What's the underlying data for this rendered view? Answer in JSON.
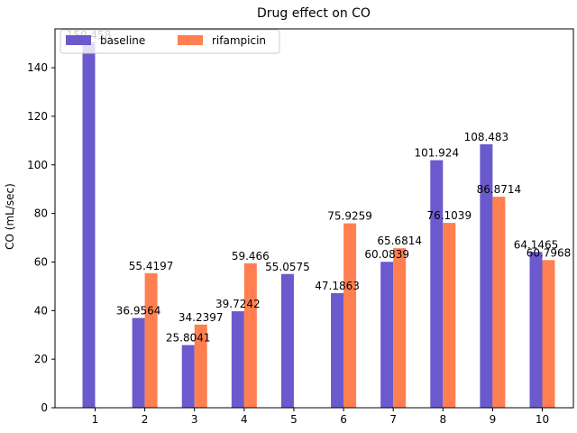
{
  "chart_data": {
    "type": "bar",
    "title": "Drug effect on CO",
    "xlabel": "",
    "ylabel": "CO (mL/sec)",
    "ylim": [
      0,
      156
    ],
    "yticks": [
      0,
      20,
      40,
      60,
      80,
      100,
      120,
      140
    ],
    "categories": [
      "1",
      "2",
      "3",
      "4",
      "5",
      "6",
      "7",
      "8",
      "9",
      "10"
    ],
    "legend_position": "top-left",
    "grid": false,
    "series": [
      {
        "name": "baseline",
        "color": "#6a5acd",
        "values": [
          150.458,
          36.9564,
          25.8041,
          39.7242,
          55.0575,
          47.1863,
          60.0839,
          101.924,
          108.483,
          64.1465
        ],
        "labels": [
          "150.458",
          "36.9564",
          "25.8041",
          "39.7242",
          "55.0575",
          "47.1863",
          "60.0839",
          "101.924",
          "108.483",
          "64.1465"
        ]
      },
      {
        "name": "rifampicin",
        "color": "#ff7f50",
        "values": [
          null,
          55.4197,
          34.2397,
          59.466,
          null,
          75.9259,
          65.6814,
          76.1039,
          86.8714,
          60.7968
        ],
        "labels": [
          null,
          "55.4197",
          "34.2397",
          "59.466",
          null,
          "75.9259",
          "65.6814",
          "76.1039",
          "86.8714",
          "60.7968"
        ]
      }
    ]
  }
}
